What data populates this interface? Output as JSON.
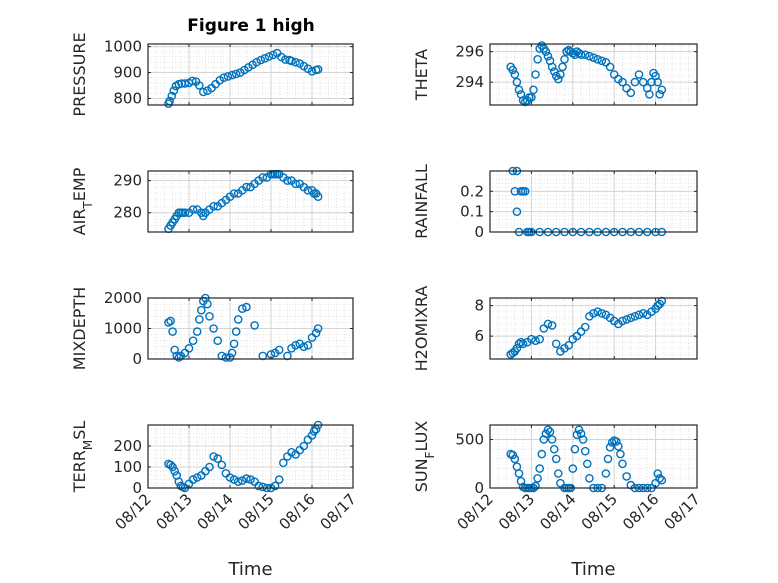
{
  "figure": {
    "title": "Figure 1 high",
    "xlabel": "Time",
    "x_tick_labels": [
      "08/12",
      "08/13",
      "08/14",
      "08/15",
      "08/16",
      "08/17"
    ],
    "xlim": [
      0,
      5
    ],
    "colors": {
      "marker": "#0072BD",
      "axes": "#262626",
      "grid": "#d4d4d4"
    }
  },
  "chart_data": [
    {
      "type": "scatter",
      "ylabel": "PRESSURE",
      "ylim": [
        775,
        1010
      ],
      "yticks": [
        800,
        900,
        1000
      ],
      "grid": true,
      "xlabel": "",
      "x": [
        0.5,
        0.53,
        0.58,
        0.63,
        0.68,
        0.75,
        0.82,
        0.9,
        1.0,
        1.08,
        1.17,
        1.25,
        1.35,
        1.45,
        1.55,
        1.65,
        1.75,
        1.85,
        1.95,
        2.05,
        2.15,
        2.25,
        2.35,
        2.45,
        2.55,
        2.65,
        2.75,
        2.85,
        2.95,
        3.05,
        3.15,
        3.25,
        3.35,
        3.45,
        3.5,
        3.6,
        3.7,
        3.8,
        3.9,
        4.0,
        4.1,
        4.15
      ],
      "values": [
        780,
        790,
        810,
        830,
        848,
        855,
        858,
        858,
        860,
        868,
        865,
        850,
        825,
        830,
        840,
        855,
        870,
        880,
        885,
        890,
        895,
        900,
        910,
        920,
        930,
        940,
        948,
        955,
        962,
        968,
        975,
        960,
        950,
        948,
        945,
        940,
        935,
        925,
        915,
        905,
        910,
        912
      ]
    },
    {
      "type": "scatter",
      "ylabel": "THETA",
      "ylim": [
        292.5,
        296.5
      ],
      "yticks": [
        294,
        296
      ],
      "grid": true,
      "xlabel": "",
      "x": [
        0.5,
        0.55,
        0.6,
        0.65,
        0.7,
        0.75,
        0.8,
        0.85,
        0.9,
        0.95,
        1.0,
        1.05,
        1.1,
        1.15,
        1.2,
        1.25,
        1.3,
        1.35,
        1.4,
        1.45,
        1.5,
        1.55,
        1.6,
        1.65,
        1.7,
        1.75,
        1.8,
        1.85,
        1.9,
        1.95,
        2.0,
        2.05,
        2.1,
        2.15,
        2.2,
        2.3,
        2.4,
        2.5,
        2.6,
        2.7,
        2.8,
        2.9,
        3.0,
        3.1,
        3.2,
        3.3,
        3.4,
        3.5,
        3.6,
        3.7,
        3.8,
        3.85,
        3.9,
        3.95,
        4.0,
        4.05,
        4.1,
        4.15
      ],
      "values": [
        295.0,
        294.8,
        294.5,
        294.0,
        293.5,
        293.2,
        292.8,
        292.7,
        292.8,
        293.0,
        293.0,
        293.5,
        294.5,
        295.5,
        296.2,
        296.4,
        296.2,
        296.0,
        295.7,
        295.4,
        295.0,
        294.7,
        294.4,
        294.2,
        294.5,
        295.0,
        295.5,
        296.0,
        296.1,
        296.0,
        295.9,
        295.8,
        296.0,
        295.9,
        295.8,
        295.8,
        295.7,
        295.6,
        295.5,
        295.4,
        295.3,
        295.0,
        294.5,
        294.2,
        294.0,
        293.6,
        293.3,
        294.0,
        294.5,
        294.0,
        293.6,
        293.2,
        294.0,
        294.6,
        294.4,
        294.0,
        293.2,
        293.5
      ]
    },
    {
      "type": "scatter",
      "ylabel": "AIR_TEMP",
      "ylim": [
        274,
        293
      ],
      "yticks": [
        280,
        290
      ],
      "grid": true,
      "xlabel": "",
      "x": [
        0.5,
        0.55,
        0.6,
        0.65,
        0.7,
        0.75,
        0.8,
        0.85,
        0.9,
        1.0,
        1.1,
        1.2,
        1.3,
        1.35,
        1.4,
        1.5,
        1.6,
        1.7,
        1.8,
        1.9,
        2.0,
        2.1,
        2.2,
        2.3,
        2.4,
        2.5,
        2.6,
        2.7,
        2.8,
        2.9,
        3.0,
        3.05,
        3.1,
        3.15,
        3.2,
        3.3,
        3.4,
        3.5,
        3.6,
        3.7,
        3.8,
        3.9,
        4.0,
        4.05,
        4.1,
        4.15
      ],
      "values": [
        275,
        276,
        277,
        278,
        279,
        280,
        280,
        280,
        280,
        280,
        281,
        281,
        280,
        279,
        280,
        281,
        282,
        282,
        283,
        284,
        285,
        286,
        286,
        287,
        288,
        288,
        289,
        290,
        291,
        291,
        292,
        292,
        292,
        292,
        292,
        291,
        290,
        290,
        289,
        289,
        288,
        287,
        287,
        286,
        286,
        285
      ]
    },
    {
      "type": "scatter",
      "ylabel": "RAINFALL",
      "ylim": [
        0,
        0.3
      ],
      "yticks": [
        0,
        0.1,
        0.2
      ],
      "grid": true,
      "xlabel": "",
      "x": [
        0.55,
        0.6,
        0.65,
        0.65,
        0.7,
        0.75,
        0.8,
        0.85,
        0.9,
        0.95,
        1.0,
        1.2,
        1.4,
        1.6,
        1.8,
        2.0,
        2.2,
        2.4,
        2.6,
        2.8,
        3.0,
        3.2,
        3.4,
        3.6,
        3.8,
        4.0,
        4.15
      ],
      "values": [
        0.3,
        0.2,
        0.1,
        0.3,
        0.0,
        0.2,
        0.2,
        0.2,
        0.0,
        0.0,
        0.0,
        0.0,
        0.0,
        0.0,
        0.0,
        0.0,
        0.0,
        0.0,
        0.0,
        0.0,
        0.0,
        0.0,
        0.0,
        0.0,
        0.0,
        0.0,
        0.0
      ]
    },
    {
      "type": "scatter",
      "ylabel": "MIXDEPTH",
      "ylim": [
        0,
        2000
      ],
      "yticks": [
        0,
        1000,
        2000
      ],
      "grid": true,
      "xlabel": "",
      "x": [
        0.5,
        0.55,
        0.6,
        0.65,
        0.7,
        0.75,
        0.8,
        0.9,
        1.0,
        1.1,
        1.2,
        1.25,
        1.3,
        1.35,
        1.4,
        1.45,
        1.5,
        1.6,
        1.7,
        1.8,
        1.9,
        2.0,
        2.05,
        2.1,
        2.15,
        2.2,
        2.3,
        2.4,
        2.6,
        2.8,
        3.0,
        3.1,
        3.2,
        3.4,
        3.5,
        3.6,
        3.7,
        3.8,
        3.9,
        4.0,
        4.1,
        4.15
      ],
      "values": [
        1200,
        1250,
        900,
        300,
        100,
        50,
        100,
        200,
        350,
        600,
        900,
        1300,
        1600,
        1900,
        2000,
        1800,
        1400,
        1000,
        600,
        100,
        50,
        50,
        200,
        500,
        900,
        1300,
        1650,
        1700,
        1100,
        100,
        150,
        200,
        300,
        100,
        350,
        450,
        500,
        400,
        450,
        700,
        850,
        1000
      ]
    },
    {
      "type": "scatter",
      "ylabel": "H2OMIXRA",
      "ylim": [
        4.5,
        8.5
      ],
      "yticks": [
        6,
        8
      ],
      "grid": true,
      "xlabel": "",
      "x": [
        0.5,
        0.55,
        0.6,
        0.65,
        0.7,
        0.75,
        0.8,
        0.9,
        1.0,
        1.1,
        1.2,
        1.3,
        1.4,
        1.5,
        1.6,
        1.7,
        1.8,
        1.9,
        2.0,
        2.1,
        2.2,
        2.3,
        2.4,
        2.5,
        2.6,
        2.7,
        2.8,
        2.9,
        3.0,
        3.1,
        3.2,
        3.3,
        3.4,
        3.5,
        3.6,
        3.7,
        3.8,
        3.9,
        4.0,
        4.05,
        4.1,
        4.15
      ],
      "values": [
        4.8,
        4.9,
        5.0,
        5.2,
        5.5,
        5.6,
        5.5,
        5.6,
        5.8,
        5.7,
        5.8,
        6.5,
        6.8,
        6.7,
        5.5,
        5.0,
        5.2,
        5.4,
        5.8,
        6.0,
        6.3,
        6.6,
        7.3,
        7.5,
        7.6,
        7.5,
        7.4,
        7.2,
        7.0,
        6.8,
        7.0,
        7.1,
        7.2,
        7.3,
        7.4,
        7.5,
        7.4,
        7.6,
        7.8,
        8.0,
        8.1,
        8.3
      ]
    },
    {
      "type": "scatter",
      "ylabel": "TERR_MSL",
      "ylim": [
        0,
        300
      ],
      "yticks": [
        0,
        100,
        200
      ],
      "grid": true,
      "xlabel": "Time",
      "x": [
        0.5,
        0.55,
        0.6,
        0.65,
        0.7,
        0.75,
        0.8,
        0.85,
        0.9,
        1.0,
        1.1,
        1.2,
        1.3,
        1.4,
        1.5,
        1.6,
        1.7,
        1.8,
        1.9,
        2.0,
        2.1,
        2.2,
        2.3,
        2.4,
        2.5,
        2.6,
        2.7,
        2.8,
        2.9,
        3.0,
        3.1,
        3.2,
        3.3,
        3.4,
        3.5,
        3.6,
        3.7,
        3.8,
        3.9,
        4.0,
        4.05,
        4.1,
        4.15
      ],
      "values": [
        115,
        110,
        100,
        80,
        60,
        30,
        10,
        5,
        0,
        20,
        40,
        50,
        60,
        80,
        100,
        150,
        140,
        110,
        70,
        50,
        40,
        30,
        35,
        45,
        40,
        30,
        10,
        5,
        0,
        0,
        10,
        40,
        120,
        150,
        170,
        160,
        180,
        200,
        230,
        250,
        270,
        280,
        300
      ]
    },
    {
      "type": "scatter",
      "ylabel": "SUN_FLUX",
      "ylim": [
        0,
        650
      ],
      "yticks": [
        0,
        500
      ],
      "grid": true,
      "xlabel": "Time",
      "x": [
        0.5,
        0.55,
        0.6,
        0.65,
        0.7,
        0.75,
        0.8,
        0.85,
        0.9,
        0.95,
        1.0,
        1.05,
        1.1,
        1.15,
        1.2,
        1.25,
        1.3,
        1.35,
        1.4,
        1.45,
        1.5,
        1.55,
        1.6,
        1.65,
        1.7,
        1.8,
        1.85,
        1.9,
        1.95,
        2.0,
        2.05,
        2.1,
        2.15,
        2.2,
        2.25,
        2.3,
        2.35,
        2.4,
        2.5,
        2.6,
        2.7,
        2.8,
        2.85,
        2.9,
        2.95,
        3.0,
        3.05,
        3.1,
        3.15,
        3.2,
        3.3,
        3.4,
        3.5,
        3.6,
        3.7,
        3.8,
        3.9,
        4.0,
        4.05,
        4.1,
        4.15
      ],
      "values": [
        350,
        340,
        300,
        220,
        150,
        70,
        10,
        0,
        0,
        0,
        0,
        0,
        20,
        100,
        200,
        350,
        500,
        560,
        600,
        580,
        500,
        400,
        300,
        150,
        50,
        0,
        0,
        0,
        0,
        200,
        400,
        550,
        600,
        560,
        500,
        380,
        250,
        100,
        0,
        0,
        0,
        150,
        300,
        420,
        470,
        490,
        480,
        430,
        350,
        250,
        120,
        30,
        0,
        0,
        0,
        0,
        0,
        50,
        150,
        100,
        80
      ]
    }
  ]
}
